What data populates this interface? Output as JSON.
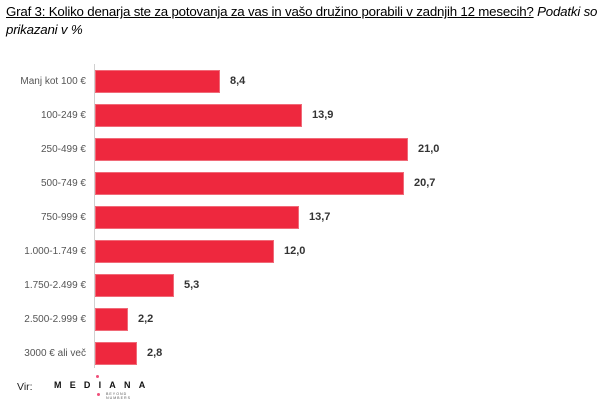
{
  "title": {
    "underlined": "Graf 3: Koliko denarja ste za potovanja za vas in vašo družino porabili v zadnjih  12 mesecih?",
    "italic": "Podatki so prikazani  v %"
  },
  "source": {
    "label": "Vir:",
    "logo_text": "MEDIANA",
    "logo_tagline_1": "BEYOND",
    "logo_tagline_2": "NUMBERS"
  },
  "colors": {
    "bar": "#ee283e",
    "logo_accent": "#f0507a"
  },
  "chart_data": {
    "type": "bar",
    "orientation": "horizontal",
    "title": "Graf 3: Koliko denarja ste za potovanja za vas in vašo družino porabili v zadnjih 12 mesecih? Podatki so prikazani v %",
    "xlabel": "",
    "ylabel": "",
    "unit": "%",
    "grid": false,
    "legend": null,
    "xlim": [
      0,
      21
    ],
    "categories": [
      "Manj kot 100 €",
      "100-249 €",
      "250-499 €",
      "500-749 €",
      "750-999 €",
      "1.000-1.749 €",
      "1.750-2.499 €",
      "2.500-2.999 €",
      "3000 € ali več"
    ],
    "values": [
      8.4,
      13.9,
      21.0,
      20.7,
      13.7,
      12.0,
      5.3,
      2.2,
      2.8
    ],
    "labels": [
      "8,4",
      "13,9",
      "21,0",
      "20,7",
      "13,7",
      "12,0",
      "5,3",
      "2,2",
      "2,8"
    ]
  }
}
